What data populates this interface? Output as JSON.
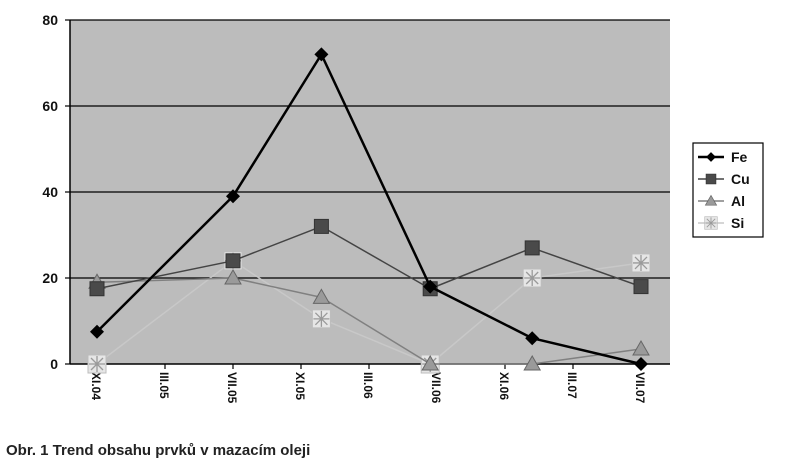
{
  "caption": "Obr. 1 Trend obsahu prvků v  mazacím oleji",
  "chart_data": {
    "type": "line",
    "categories": [
      "XI.04",
      "III.05",
      "VII.05",
      "XI.05",
      "III.06",
      "VII.06",
      "XI.06",
      "III.07",
      "VII.07"
    ],
    "ylim": [
      0,
      80
    ],
    "yticks": [
      0,
      20,
      40,
      60,
      80
    ],
    "grid": true,
    "plot_background": "#bcbcbc",
    "legend_position": "right",
    "series": [
      {
        "name": "Fe",
        "color": "#000000",
        "marker": "diamond",
        "width": 2.5,
        "points": [
          {
            "x": 0,
            "y": 7.5
          },
          {
            "x": 2,
            "y": 39
          },
          {
            "x": 3.3,
            "y": 72
          },
          {
            "x": 4.9,
            "y": 18
          },
          {
            "x": 6.4,
            "y": 6
          },
          {
            "x": 8,
            "y": 0
          }
        ]
      },
      {
        "name": "Cu",
        "color": "#444444",
        "marker": "square",
        "width": 1.5,
        "points": [
          {
            "x": 0,
            "y": 17.5
          },
          {
            "x": 2,
            "y": 24
          },
          {
            "x": 3.3,
            "y": 32
          },
          {
            "x": 4.9,
            "y": 17.5
          },
          {
            "x": 6.4,
            "y": 27
          },
          {
            "x": 8,
            "y": 18
          }
        ]
      },
      {
        "name": "Al",
        "color": "#808080",
        "marker": "triangle",
        "width": 1.5,
        "points": [
          {
            "x": 0,
            "y": 19
          },
          {
            "x": 2,
            "y": 20
          },
          {
            "x": 3.3,
            "y": 15.5
          },
          {
            "x": 4.9,
            "y": 0
          },
          {
            "x": 6.4,
            "y": 0
          },
          {
            "x": 8,
            "y": 3.5
          }
        ]
      },
      {
        "name": "Si",
        "color": "#c8c8c8",
        "marker": "star",
        "width": 1.5,
        "points": [
          {
            "x": 0,
            "y": 0
          },
          {
            "x": 2,
            "y": 24
          },
          {
            "x": 3.3,
            "y": 10.5
          },
          {
            "x": 4.9,
            "y": 0
          },
          {
            "x": 6.4,
            "y": 20
          },
          {
            "x": 8,
            "y": 23.5
          }
        ]
      }
    ]
  }
}
